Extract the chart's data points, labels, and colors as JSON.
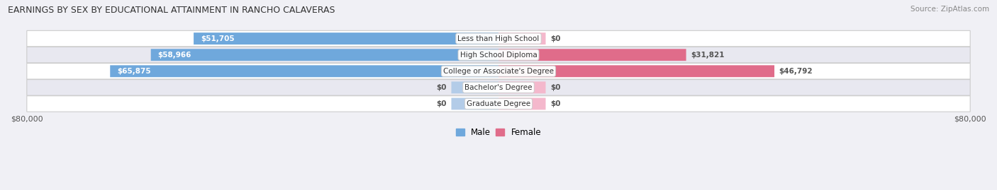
{
  "title": "EARNINGS BY SEX BY EDUCATIONAL ATTAINMENT IN RANCHO CALAVERAS",
  "source": "Source: ZipAtlas.com",
  "categories": [
    "Less than High School",
    "High School Diploma",
    "College or Associate's Degree",
    "Bachelor's Degree",
    "Graduate Degree"
  ],
  "male_values": [
    51705,
    58966,
    65875,
    0,
    0
  ],
  "female_values": [
    0,
    31821,
    46792,
    0,
    0
  ],
  "male_labels": [
    "$51,705",
    "$58,966",
    "$65,875",
    "$0",
    "$0"
  ],
  "female_labels": [
    "$0",
    "$31,821",
    "$46,792",
    "$0",
    "$0"
  ],
  "male_color": "#6fa8dc",
  "male_color_light": "#b3cce8",
  "female_color": "#e06c8a",
  "female_color_light": "#f4b8cc",
  "zero_bar_width": 8000,
  "max_val": 80000,
  "background_color": "#f0f0f5",
  "row_bg_color": "#e8e8f0",
  "row_bg_color2": "#ffffff",
  "legend_male_color": "#6fa8dc",
  "legend_female_color": "#e06c8a",
  "bar_height": 0.72
}
